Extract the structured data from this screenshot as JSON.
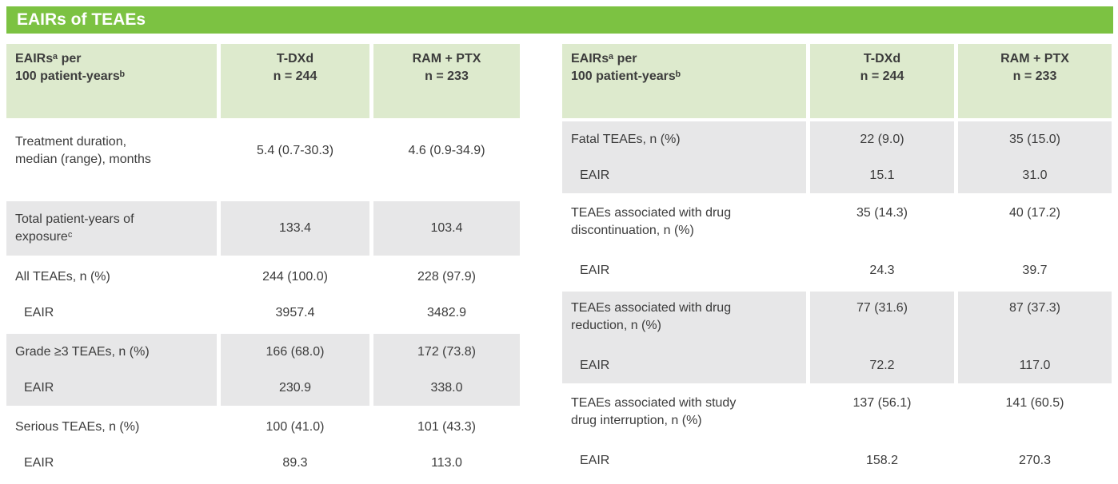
{
  "title": "EAIRs of TEAEs",
  "colors": {
    "title_bar": "#7CC242",
    "header_bg": "#DDEACD",
    "row_alt_bg": "#E7E7E8",
    "text": "#3C3C3C",
    "title_text": "#FFFFFF"
  },
  "left_table": {
    "header": {
      "label": "EAIRsᵃ per\n100 patient-yearsᵇ",
      "tdxd": "T-DXd\nn = 244",
      "ram_ptx": "RAM + PTX\nn = 233"
    },
    "rows": [
      {
        "label": "Treatment duration,\nmedian (range), months",
        "tdxd": "5.4 (0.7-30.3)",
        "ram_ptx": "4.6 (0.9-34.9)"
      },
      {
        "label": "Total patient-years of\nexposureᶜ",
        "tdxd": "133.4",
        "ram_ptx": "103.4"
      },
      {
        "label": "All TEAEs, n (%)",
        "tdxd": "244 (100.0)",
        "ram_ptx": "228 (97.9)"
      },
      {
        "label": "EAIR",
        "tdxd": "3957.4",
        "ram_ptx": "3482.9"
      },
      {
        "label": "Grade ≥3 TEAEs, n (%)",
        "tdxd": "166 (68.0)",
        "ram_ptx": "172 (73.8)"
      },
      {
        "label": "EAIR",
        "tdxd": "230.9",
        "ram_ptx": "338.0"
      },
      {
        "label": "Serious TEAEs, n (%)",
        "tdxd": "100 (41.0)",
        "ram_ptx": "101 (43.3)"
      },
      {
        "label": "EAIR",
        "tdxd": "89.3",
        "ram_ptx": "113.0"
      }
    ]
  },
  "right_table": {
    "header": {
      "label": "EAIRsᵃ per\n100 patient-yearsᵇ",
      "tdxd": "T-DXd\nn = 244",
      "ram_ptx": "RAM + PTX\nn = 233"
    },
    "rows": [
      {
        "label": "Fatal TEAEs, n (%)",
        "tdxd": "22 (9.0)",
        "ram_ptx": "35 (15.0)"
      },
      {
        "label": "EAIR",
        "tdxd": "15.1",
        "ram_ptx": "31.0"
      },
      {
        "label": "TEAEs associated with drug\ndiscontinuation, n (%)",
        "tdxd": "35 (14.3)",
        "ram_ptx": "40 (17.2)"
      },
      {
        "label": "EAIR",
        "tdxd": "24.3",
        "ram_ptx": "39.7"
      },
      {
        "label": "TEAEs associated with drug\nreduction, n (%)",
        "tdxd": "77 (31.6)",
        "ram_ptx": "87 (37.3)"
      },
      {
        "label": "EAIR",
        "tdxd": "72.2",
        "ram_ptx": "117.0"
      },
      {
        "label": "TEAEs associated with study\ndrug interruption, n (%)",
        "tdxd": "137 (56.1)",
        "ram_ptx": "141 (60.5)"
      },
      {
        "label": "EAIR",
        "tdxd": "158.2",
        "ram_ptx": "270.3"
      }
    ]
  }
}
